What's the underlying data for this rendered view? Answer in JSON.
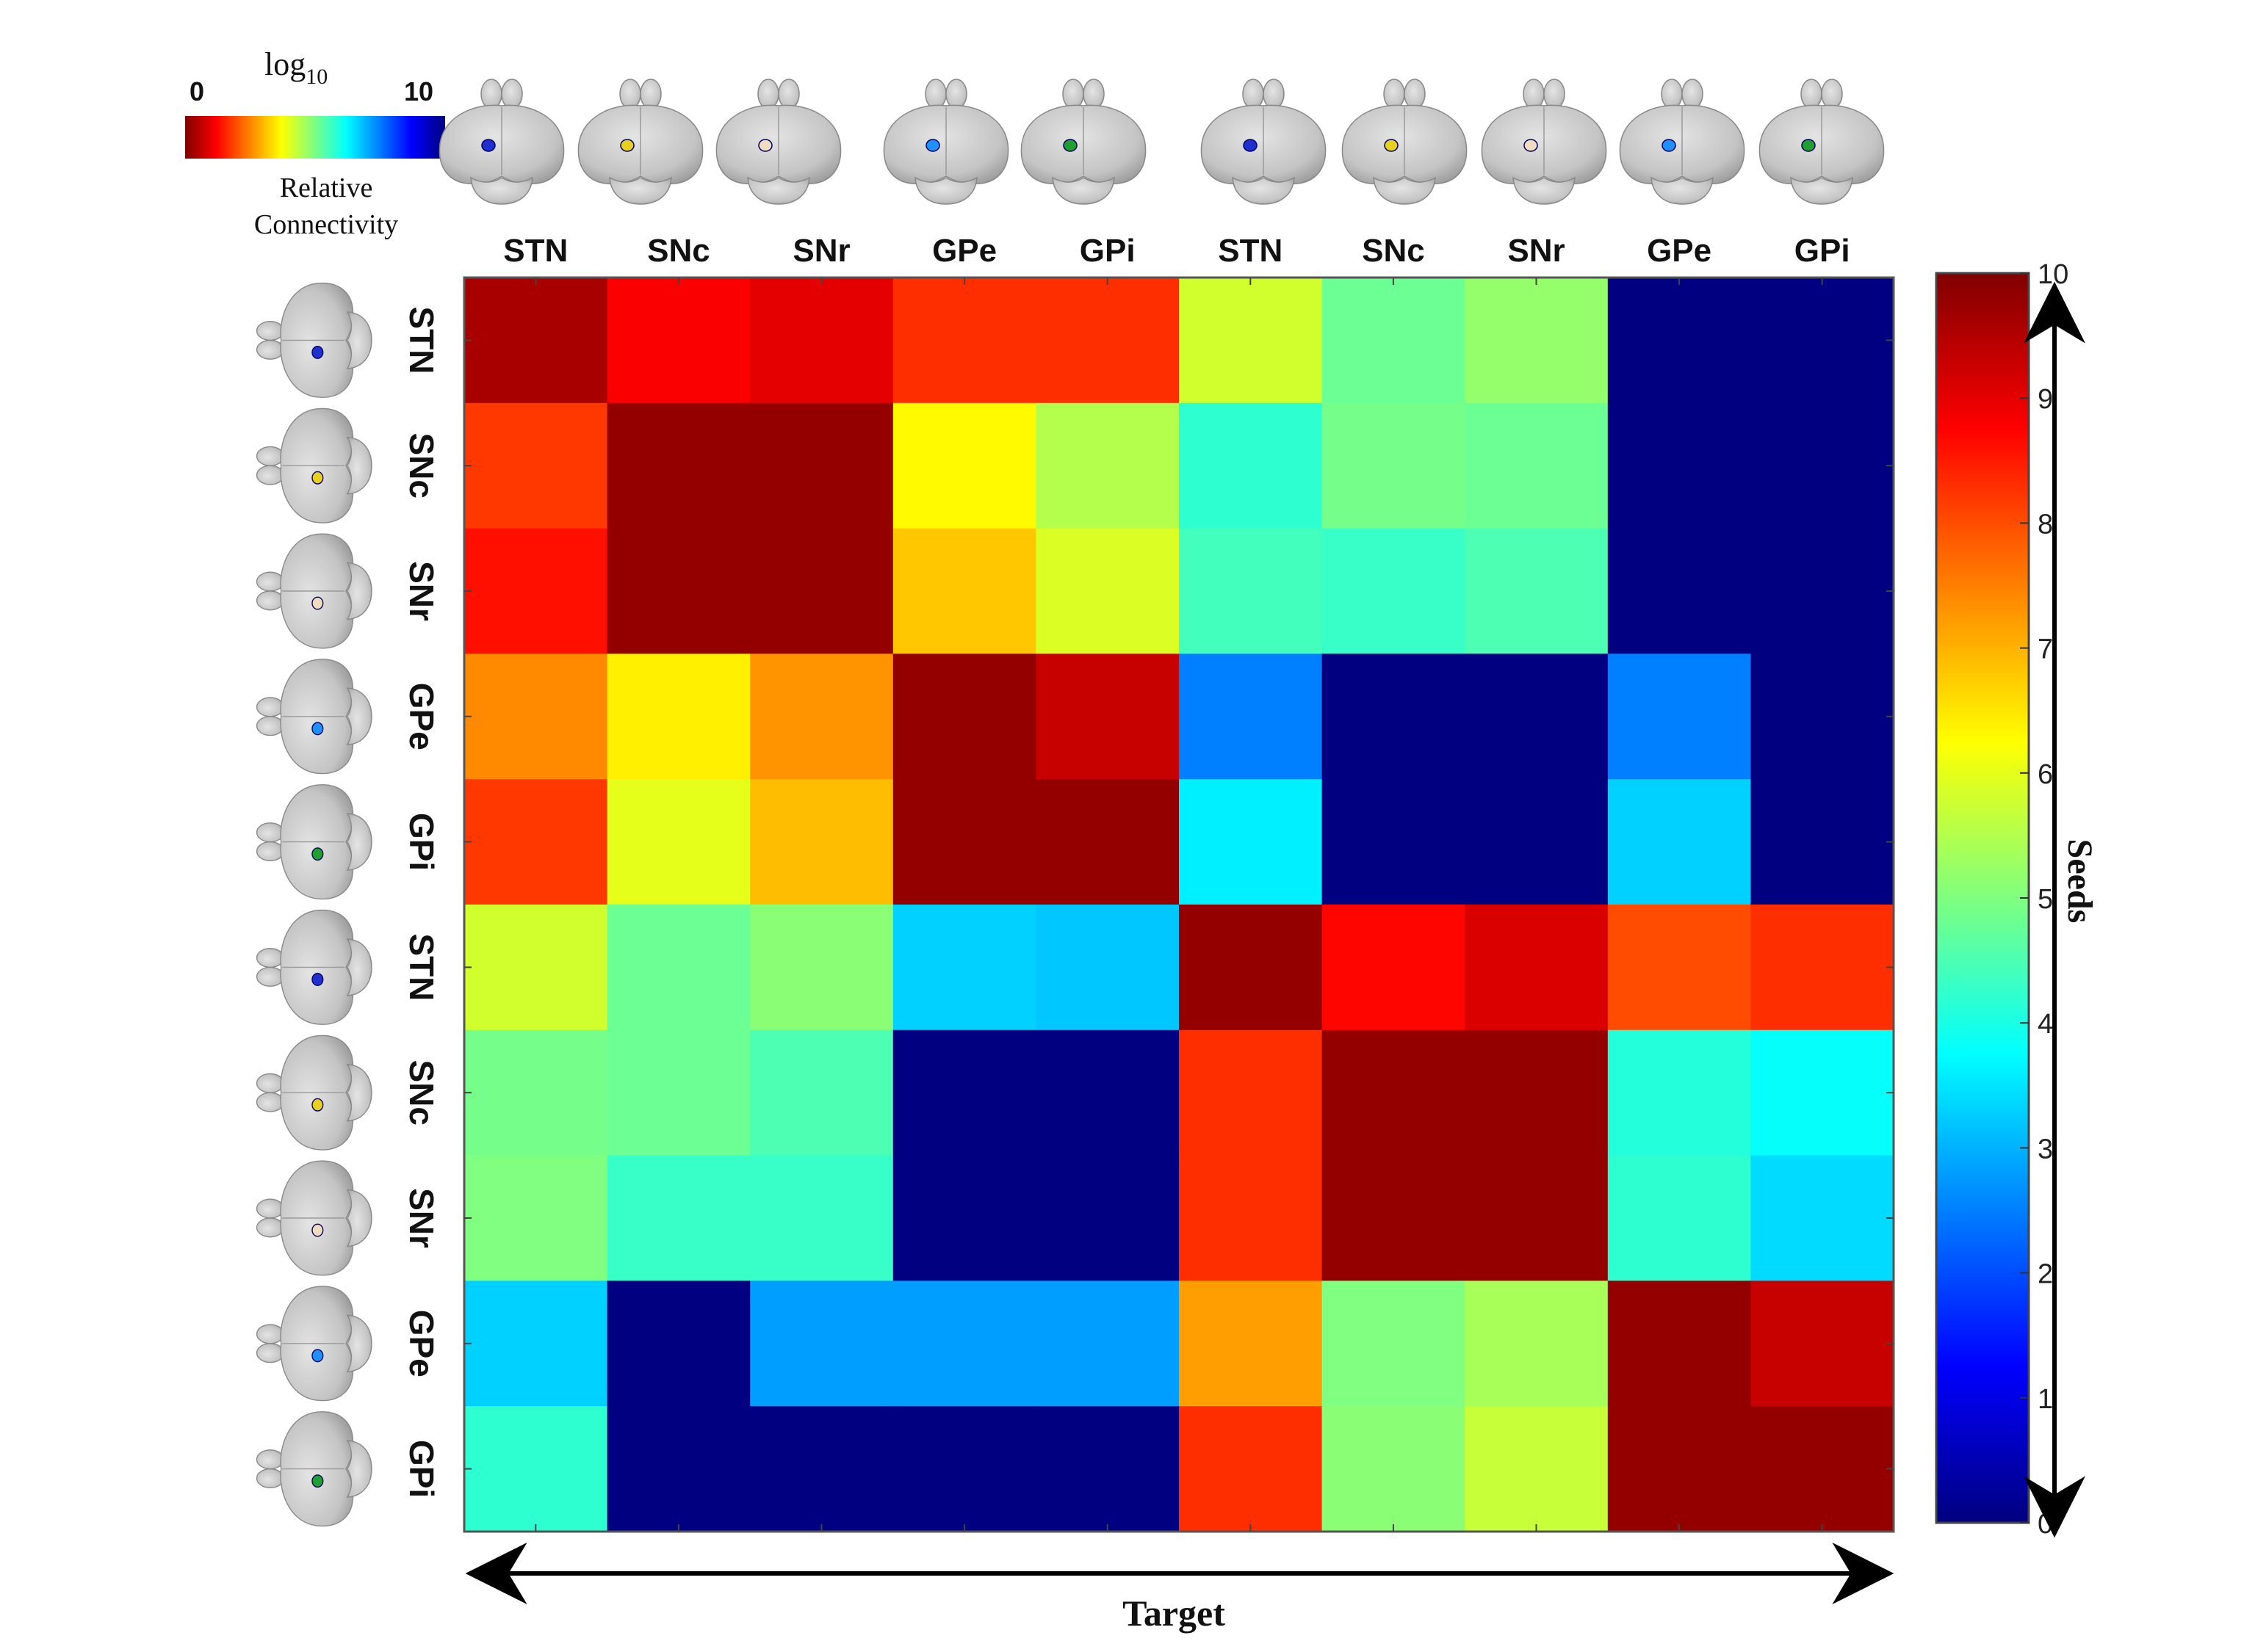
{
  "chart_data": {
    "type": "heatmap",
    "title": "",
    "xlabel": "Target",
    "ylabel": "Seeds",
    "x_categories": [
      "STN",
      "SNc",
      "SNr",
      "GPe",
      "GPi",
      "STN",
      "SNc",
      "SNr",
      "GPe",
      "GPi"
    ],
    "y_categories": [
      "STN",
      "SNc",
      "SNr",
      "GPe",
      "GPi",
      "STN",
      "SNc",
      "SNr",
      "GPe",
      "GPi"
    ],
    "values": [
      [
        9.6,
        8.8,
        9.0,
        8.3,
        8.3,
        5.8,
        4.8,
        5.2,
        0.0,
        0.0
      ],
      [
        8.2,
        9.8,
        9.8,
        6.3,
        5.5,
        4.2,
        4.9,
        4.8,
        0.0,
        0.0
      ],
      [
        8.6,
        9.8,
        9.8,
        6.8,
        5.9,
        4.4,
        4.3,
        4.5,
        0.0,
        0.0
      ],
      [
        7.4,
        6.4,
        7.3,
        9.8,
        9.3,
        2.5,
        0.0,
        0.0,
        2.5,
        0.0
      ],
      [
        8.2,
        6.0,
        6.9,
        9.8,
        9.8,
        3.6,
        0.0,
        0.0,
        3.3,
        0.0
      ],
      [
        5.8,
        4.8,
        5.1,
        3.3,
        3.2,
        9.8,
        8.7,
        9.1,
        8.0,
        8.3
      ],
      [
        4.9,
        4.8,
        4.5,
        0.0,
        0.0,
        8.3,
        9.8,
        9.8,
        4.1,
        3.8
      ],
      [
        5.0,
        4.3,
        4.3,
        0.0,
        0.0,
        8.3,
        9.8,
        9.8,
        4.2,
        3.4
      ],
      [
        3.3,
        0.0,
        2.8,
        2.8,
        2.8,
        7.2,
        5.0,
        5.4,
        9.8,
        9.3
      ],
      [
        4.2,
        0.0,
        0.0,
        0.0,
        0.0,
        8.3,
        5.1,
        5.7,
        9.8,
        9.8
      ]
    ],
    "colorbar": {
      "min": 0,
      "max": 10,
      "ticks": [
        "0",
        "1",
        "2",
        "3",
        "4",
        "5",
        "6",
        "7",
        "8",
        "9",
        "10"
      ]
    },
    "colormap": "jet",
    "legend_inset": {
      "title": "log",
      "title_subscript": "10",
      "min_label": "0",
      "max_label": "10",
      "caption_line1": "Relative",
      "caption_line2": "Connectivity"
    },
    "top_brain_highlight_colors": [
      "#2030d0",
      "#e8d020",
      "#f0dcc0",
      "#2090ff",
      "#20a030",
      "#2030d0",
      "#e8d020",
      "#f0dcc0",
      "#2090ff",
      "#20a030"
    ],
    "left_brain_highlight_colors": [
      "#2030d0",
      "#e8d020",
      "#f0dcc0",
      "#2090ff",
      "#20a030",
      "#2030d0",
      "#e8d020",
      "#f0dcc0",
      "#2090ff",
      "#20a030"
    ]
  }
}
